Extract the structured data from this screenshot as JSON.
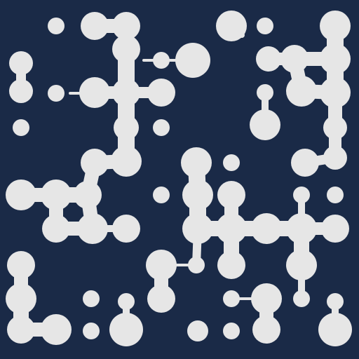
{
  "colors": {
    "background": "#1a2a47",
    "blob": "#e6e6e6"
  }
}
